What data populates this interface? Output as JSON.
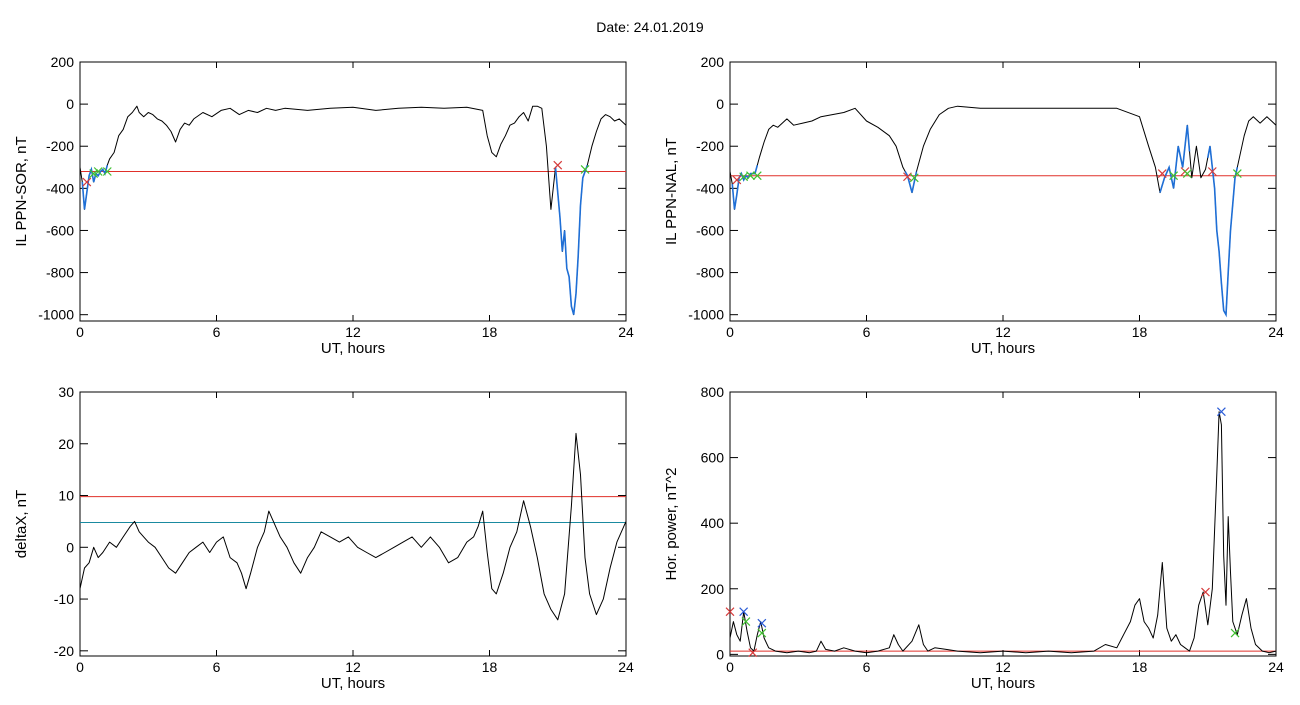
{
  "header": {
    "title": "Date:  24.01.2019"
  },
  "colors": {
    "axis": "#000000",
    "trace": "#000000",
    "threshold_red": "#e0302a",
    "threshold_teal": "#1a8aa0",
    "segment_blue": "#1f6fd6",
    "marker_red": "#d63b3b",
    "marker_green": "#3fbf2f",
    "marker_blue": "#2a5bd6"
  },
  "chart_data": [
    {
      "id": "sor",
      "type": "line",
      "ylabel": "IL PPN-SOR, nT",
      "xlabel": "UT, hours",
      "xlim": [
        0,
        24
      ],
      "ylim": [
        -1030,
        200
      ],
      "xticks": [
        0,
        6,
        12,
        18,
        24
      ],
      "yticks": [
        200,
        0,
        -200,
        -400,
        -600,
        -800,
        -1000
      ],
      "x": [
        0,
        0.1,
        0.2,
        0.3,
        0.4,
        0.5,
        0.6,
        0.7,
        0.8,
        0.9,
        1.0,
        1.1,
        1.2,
        1.3,
        1.5,
        1.7,
        1.9,
        2.1,
        2.3,
        2.5,
        2.6,
        2.8,
        3.0,
        3.2,
        3.4,
        3.6,
        3.8,
        4.0,
        4.2,
        4.4,
        4.6,
        4.8,
        5.0,
        5.4,
        5.8,
        6.2,
        6.6,
        7.0,
        7.4,
        7.8,
        8.2,
        8.6,
        9.0,
        10,
        11,
        12,
        13,
        14,
        15,
        16,
        17,
        17.7,
        17.9,
        18.1,
        18.3,
        18.5,
        18.7,
        18.9,
        19.1,
        19.3,
        19.5,
        19.7,
        19.9,
        20.1,
        20.3,
        20.5,
        20.7,
        20.9,
        21.1,
        21.2,
        21.3,
        21.4,
        21.5,
        21.6,
        21.7,
        21.8,
        21.9,
        22.0,
        22.1,
        22.3,
        22.5,
        22.7,
        22.9,
        23.1,
        23.3,
        23.5,
        23.7,
        23.9,
        24
      ],
      "values": [
        -300,
        -370,
        -500,
        -420,
        -340,
        -310,
        -370,
        -330,
        -340,
        -320,
        -310,
        -330,
        -290,
        -260,
        -230,
        -150,
        -120,
        -60,
        -40,
        -10,
        -40,
        -60,
        -40,
        -50,
        -70,
        -80,
        -100,
        -130,
        -180,
        -120,
        -90,
        -100,
        -70,
        -40,
        -60,
        -30,
        -20,
        -50,
        -30,
        -40,
        -20,
        -30,
        -20,
        -30,
        -20,
        -15,
        -30,
        -20,
        -15,
        -20,
        -15,
        -30,
        -150,
        -230,
        -250,
        -190,
        -150,
        -100,
        -90,
        -60,
        -40,
        -80,
        -10,
        -10,
        -20,
        -200,
        -500,
        -300,
        -540,
        -700,
        -600,
        -780,
        -820,
        -960,
        -1000,
        -900,
        -720,
        -480,
        -350,
        -290,
        -200,
        -130,
        -70,
        -50,
        -60,
        -80,
        -70,
        -90,
        -100
      ],
      "threshold": -320,
      "highlight_ranges": [
        [
          0.1,
          1.2
        ],
        [
          20.9,
          22.3
        ]
      ],
      "markers": [
        {
          "x": 0.3,
          "y": -370,
          "color": "marker_red"
        },
        {
          "x": 0.6,
          "y": -330,
          "color": "marker_green"
        },
        {
          "x": 0.8,
          "y": -320,
          "color": "marker_green"
        },
        {
          "x": 1.2,
          "y": -320,
          "color": "marker_green"
        },
        {
          "x": 21.0,
          "y": -290,
          "color": "marker_red"
        },
        {
          "x": 22.2,
          "y": -310,
          "color": "marker_green"
        }
      ]
    },
    {
      "id": "nal",
      "type": "line",
      "ylabel": "IL PPN-NAL, nT",
      "xlabel": "UT, hours",
      "xlim": [
        0,
        24
      ],
      "ylim": [
        -1030,
        200
      ],
      "xticks": [
        0,
        6,
        12,
        18,
        24
      ],
      "yticks": [
        200,
        0,
        -200,
        -400,
        -600,
        -800,
        -1000
      ],
      "x": [
        0,
        0.1,
        0.2,
        0.3,
        0.4,
        0.5,
        0.6,
        0.7,
        0.8,
        0.9,
        1.0,
        1.1,
        1.2,
        1.3,
        1.5,
        1.7,
        1.9,
        2.1,
        2.3,
        2.5,
        2.8,
        3.2,
        3.6,
        4.0,
        4.5,
        5.0,
        5.5,
        6.0,
        6.5,
        7.0,
        7.3,
        7.6,
        7.8,
        8.0,
        8.2,
        8.5,
        8.8,
        9.2,
        9.6,
        10,
        11,
        12,
        13,
        14,
        15,
        16,
        17,
        18,
        18.4,
        18.7,
        18.9,
        19.1,
        19.3,
        19.5,
        19.7,
        19.9,
        20.1,
        20.3,
        20.5,
        20.7,
        20.9,
        21.1,
        21.3,
        21.4,
        21.5,
        21.6,
        21.7,
        21.8,
        21.9,
        22.0,
        22.2,
        22.4,
        22.6,
        22.8,
        23.0,
        23.3,
        23.6,
        24
      ],
      "values": [
        -320,
        -380,
        -500,
        -430,
        -350,
        -330,
        -360,
        -340,
        -350,
        -330,
        -330,
        -330,
        -290,
        -250,
        -180,
        -120,
        -100,
        -110,
        -90,
        -70,
        -100,
        -90,
        -80,
        -60,
        -50,
        -40,
        -20,
        -80,
        -110,
        -150,
        -200,
        -300,
        -340,
        -420,
        -320,
        -200,
        -120,
        -50,
        -20,
        -10,
        -20,
        -20,
        -20,
        -20,
        -20,
        -20,
        -20,
        -60,
        -200,
        -300,
        -420,
        -350,
        -300,
        -400,
        -200,
        -300,
        -100,
        -350,
        -200,
        -350,
        -310,
        -200,
        -400,
        -600,
        -700,
        -850,
        -980,
        -1000,
        -800,
        -600,
        -350,
        -250,
        -150,
        -80,
        -60,
        -90,
        -60,
        -100
      ],
      "threshold": -340,
      "highlight_ranges": [
        [
          0.1,
          1.2
        ],
        [
          7.7,
          8.2
        ],
        [
          18.9,
          20.2
        ],
        [
          21.0,
          22.3
        ]
      ],
      "markers": [
        {
          "x": 0.3,
          "y": -360,
          "color": "marker_red"
        },
        {
          "x": 0.6,
          "y": -345,
          "color": "marker_green"
        },
        {
          "x": 0.9,
          "y": -340,
          "color": "marker_green"
        },
        {
          "x": 1.2,
          "y": -340,
          "color": "marker_green"
        },
        {
          "x": 7.8,
          "y": -345,
          "color": "marker_red"
        },
        {
          "x": 8.1,
          "y": -350,
          "color": "marker_green"
        },
        {
          "x": 19.0,
          "y": -330,
          "color": "marker_red"
        },
        {
          "x": 19.5,
          "y": -340,
          "color": "marker_green"
        },
        {
          "x": 20.0,
          "y": -320,
          "color": "marker_red"
        },
        {
          "x": 20.1,
          "y": -330,
          "color": "marker_green"
        },
        {
          "x": 21.2,
          "y": -320,
          "color": "marker_red"
        },
        {
          "x": 22.3,
          "y": -330,
          "color": "marker_green"
        }
      ]
    },
    {
      "id": "deltax",
      "type": "line",
      "ylabel": "deltaX, nT",
      "xlabel": "UT, hours",
      "xlim": [
        0,
        24
      ],
      "ylim": [
        -21,
        30
      ],
      "xticks": [
        0,
        6,
        12,
        18,
        24
      ],
      "yticks": [
        30,
        20,
        10,
        0,
        -10,
        -20
      ],
      "x": [
        0,
        0.2,
        0.4,
        0.6,
        0.8,
        1.0,
        1.3,
        1.6,
        1.9,
        2.2,
        2.4,
        2.6,
        2.8,
        3.0,
        3.3,
        3.6,
        3.9,
        4.2,
        4.5,
        4.8,
        5.1,
        5.4,
        5.7,
        6.0,
        6.3,
        6.6,
        6.9,
        7.1,
        7.3,
        7.5,
        7.8,
        8.1,
        8.3,
        8.5,
        8.8,
        9.1,
        9.4,
        9.7,
        10,
        10.3,
        10.6,
        11,
        11.4,
        11.8,
        12.2,
        12.6,
        13,
        13.4,
        13.8,
        14.2,
        14.6,
        15,
        15.4,
        15.8,
        16.2,
        16.6,
        17,
        17.3,
        17.5,
        17.7,
        17.9,
        18.1,
        18.3,
        18.6,
        18.9,
        19.2,
        19.5,
        19.8,
        20.1,
        20.4,
        20.7,
        21.0,
        21.3,
        21.6,
        21.8,
        22.0,
        22.2,
        22.4,
        22.7,
        23.0,
        23.3,
        23.6,
        24
      ],
      "values": [
        -8,
        -4,
        -3,
        0,
        -2,
        -1,
        1,
        0,
        2,
        4,
        5,
        3,
        2,
        1,
        0,
        -2,
        -4,
        -5,
        -3,
        -1,
        0,
        1,
        -1,
        1,
        2,
        -2,
        -3,
        -5,
        -8,
        -5,
        0,
        3,
        7,
        5,
        2,
        0,
        -3,
        -5,
        -2,
        0,
        3,
        2,
        1,
        2,
        0,
        -1,
        -2,
        -1,
        0,
        1,
        2,
        0,
        2,
        0,
        -3,
        -2,
        1,
        2,
        4,
        7,
        -1,
        -8,
        -9,
        -5,
        0,
        3,
        9,
        4,
        -2,
        -9,
        -12,
        -14,
        -9,
        8,
        22,
        14,
        -2,
        -9,
        -13,
        -10,
        -4,
        1,
        5
      ],
      "thresholds": [
        {
          "value": 9.8,
          "color": "threshold_red"
        },
        {
          "value": 4.8,
          "color": "threshold_teal"
        }
      ]
    },
    {
      "id": "hpower",
      "type": "line",
      "ylabel": "Hor. power, nT^2",
      "xlabel": "UT, hours",
      "xlim": [
        0,
        24
      ],
      "ylim": [
        -5,
        800
      ],
      "xticks": [
        0,
        6,
        12,
        18,
        24
      ],
      "yticks": [
        800,
        600,
        400,
        200,
        0
      ],
      "x": [
        0,
        0.15,
        0.3,
        0.45,
        0.6,
        0.75,
        0.9,
        1.05,
        1.2,
        1.35,
        1.5,
        1.7,
        2.0,
        2.5,
        3.0,
        3.5,
        3.8,
        4.0,
        4.2,
        4.6,
        5.0,
        5.5,
        6.0,
        6.5,
        7.0,
        7.2,
        7.4,
        7.6,
        8.0,
        8.3,
        8.5,
        8.7,
        9.0,
        9.5,
        10,
        11,
        12,
        13,
        14,
        15,
        16,
        16.5,
        17,
        17.3,
        17.6,
        17.8,
        18.0,
        18.2,
        18.4,
        18.6,
        18.8,
        19.0,
        19.2,
        19.4,
        19.6,
        19.8,
        20.0,
        20.2,
        20.4,
        20.6,
        20.8,
        21.0,
        21.2,
        21.4,
        21.5,
        21.6,
        21.7,
        21.8,
        21.9,
        22.0,
        22.1,
        22.3,
        22.5,
        22.7,
        22.9,
        23.1,
        23.4,
        23.7,
        24
      ],
      "values": [
        50,
        100,
        60,
        40,
        130,
        70,
        20,
        10,
        60,
        100,
        50,
        20,
        10,
        5,
        10,
        5,
        10,
        40,
        15,
        10,
        20,
        10,
        5,
        10,
        20,
        60,
        30,
        10,
        40,
        90,
        30,
        10,
        20,
        15,
        10,
        5,
        10,
        5,
        10,
        5,
        10,
        30,
        20,
        60,
        100,
        150,
        170,
        100,
        80,
        50,
        120,
        280,
        80,
        40,
        60,
        30,
        20,
        10,
        50,
        150,
        190,
        90,
        200,
        550,
        740,
        700,
        300,
        150,
        420,
        250,
        100,
        60,
        120,
        170,
        80,
        30,
        10,
        5,
        10
      ],
      "threshold": 10,
      "markers": [
        {
          "x": 0.0,
          "y": 130,
          "color": "marker_red"
        },
        {
          "x": 0.6,
          "y": 130,
          "color": "marker_blue"
        },
        {
          "x": 0.7,
          "y": 100,
          "color": "marker_green"
        },
        {
          "x": 1.0,
          "y": 5,
          "color": "marker_red"
        },
        {
          "x": 1.4,
          "y": 95,
          "color": "marker_blue"
        },
        {
          "x": 1.4,
          "y": 65,
          "color": "marker_green"
        },
        {
          "x": 20.9,
          "y": 190,
          "color": "marker_red"
        },
        {
          "x": 21.6,
          "y": 740,
          "color": "marker_blue"
        },
        {
          "x": 22.2,
          "y": 65,
          "color": "marker_green"
        }
      ]
    }
  ]
}
